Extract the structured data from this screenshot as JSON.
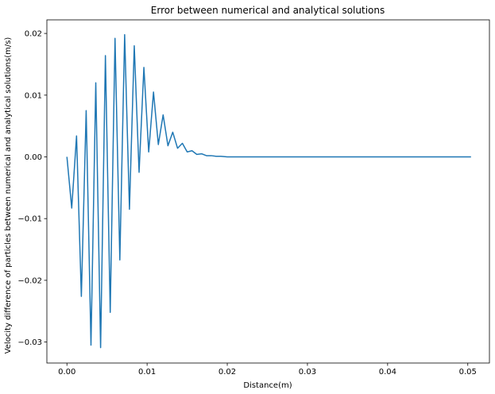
{
  "chart_data": {
    "type": "line",
    "title": "Error between numerical and analytical solutions",
    "xlabel": "Distance(m)",
    "ylabel": "Velocity difference of particles between numerical and analytical solutions(m/s)",
    "xlim": [
      -0.0025,
      0.0527
    ],
    "ylim": [
      -0.0334,
      0.0222
    ],
    "xticks": [
      0.0,
      0.01,
      0.02,
      0.03,
      0.04,
      0.05
    ],
    "xtick_labels": [
      "0.00",
      "0.01",
      "0.02",
      "0.03",
      "0.04",
      "0.05"
    ],
    "yticks": [
      -0.03,
      -0.02,
      -0.01,
      0.0,
      0.01,
      0.02
    ],
    "ytick_labels": [
      "−0.03",
      "−0.02",
      "−0.01",
      "0.00",
      "0.01",
      "0.02"
    ],
    "grid": false,
    "legend": "none",
    "colors": {
      "line": "#1f77b4"
    },
    "series": [
      {
        "x": [
          0.0,
          0.0006,
          0.0012,
          0.0018,
          0.0024,
          0.003,
          0.0036,
          0.0042,
          0.0048,
          0.0054,
          0.006,
          0.0066,
          0.0072,
          0.0078,
          0.0084,
          0.009,
          0.0096,
          0.0102,
          0.0108,
          0.0114,
          0.012,
          0.0126,
          0.0132,
          0.0138,
          0.0144,
          0.015,
          0.0156,
          0.0162,
          0.0168,
          0.0174,
          0.018,
          0.0186,
          0.0192,
          0.02,
          0.021,
          0.022,
          0.025,
          0.03,
          0.035,
          0.04,
          0.045,
          0.0504
        ],
        "y": [
          0.0,
          -0.0083,
          0.0034,
          -0.0226,
          0.0075,
          -0.0305,
          0.012,
          -0.0309,
          0.0164,
          -0.0252,
          0.0192,
          -0.0167,
          0.0198,
          -0.0085,
          0.018,
          -0.0025,
          0.0145,
          0.0008,
          0.0105,
          0.002,
          0.0068,
          0.0018,
          0.004,
          0.0014,
          0.0022,
          0.0008,
          0.001,
          0.0004,
          0.0005,
          0.0002,
          0.0002,
          0.0001,
          0.0001,
          0.0,
          0.0,
          0.0,
          0.0,
          0.0,
          0.0,
          0.0,
          0.0,
          0.0
        ]
      }
    ]
  }
}
